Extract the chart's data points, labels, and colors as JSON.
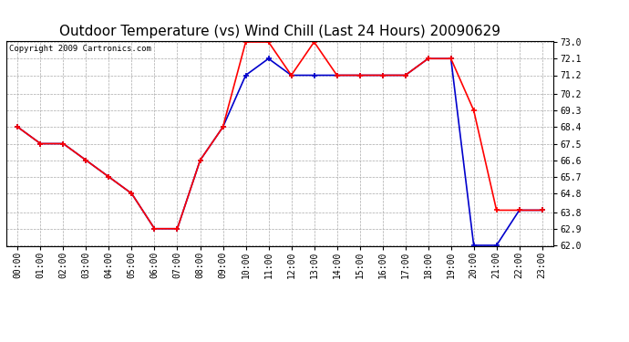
{
  "title": "Outdoor Temperature (vs) Wind Chill (Last 24 Hours) 20090629",
  "copyright": "Copyright 2009 Cartronics.com",
  "x_labels": [
    "00:00",
    "01:00",
    "02:00",
    "03:00",
    "04:00",
    "05:00",
    "06:00",
    "07:00",
    "08:00",
    "09:00",
    "10:00",
    "11:00",
    "12:00",
    "13:00",
    "14:00",
    "15:00",
    "16:00",
    "17:00",
    "18:00",
    "19:00",
    "20:00",
    "21:00",
    "22:00",
    "23:00"
  ],
  "temp": [
    68.4,
    67.5,
    67.5,
    66.6,
    65.7,
    64.8,
    62.9,
    62.9,
    66.6,
    68.4,
    73.0,
    73.0,
    71.2,
    73.0,
    71.2,
    71.2,
    71.2,
    71.2,
    72.1,
    72.1,
    69.3,
    63.9,
    63.9,
    63.9
  ],
  "wind_chill": [
    68.4,
    67.5,
    67.5,
    66.6,
    65.7,
    64.8,
    62.9,
    62.9,
    66.6,
    68.4,
    71.2,
    72.1,
    71.2,
    71.2,
    71.2,
    71.2,
    71.2,
    71.2,
    72.1,
    72.1,
    62.0,
    62.0,
    63.9,
    63.9
  ],
  "temp_color": "#ff0000",
  "wind_chill_color": "#0000cc",
  "marker": "+",
  "markersize": 5,
  "markeredgewidth": 1.2,
  "linewidth": 1.2,
  "ylim_min": 62.0,
  "ylim_max": 73.0,
  "yticks": [
    62.0,
    62.9,
    63.8,
    64.8,
    65.7,
    66.6,
    67.5,
    68.4,
    69.3,
    70.2,
    71.2,
    72.1,
    73.0
  ],
  "background_color": "#ffffff",
  "plot_bg_color": "#ffffff",
  "grid_color": "#aaaaaa",
  "grid_style": "--",
  "title_fontsize": 11,
  "copyright_fontsize": 6.5,
  "tick_fontsize": 7
}
